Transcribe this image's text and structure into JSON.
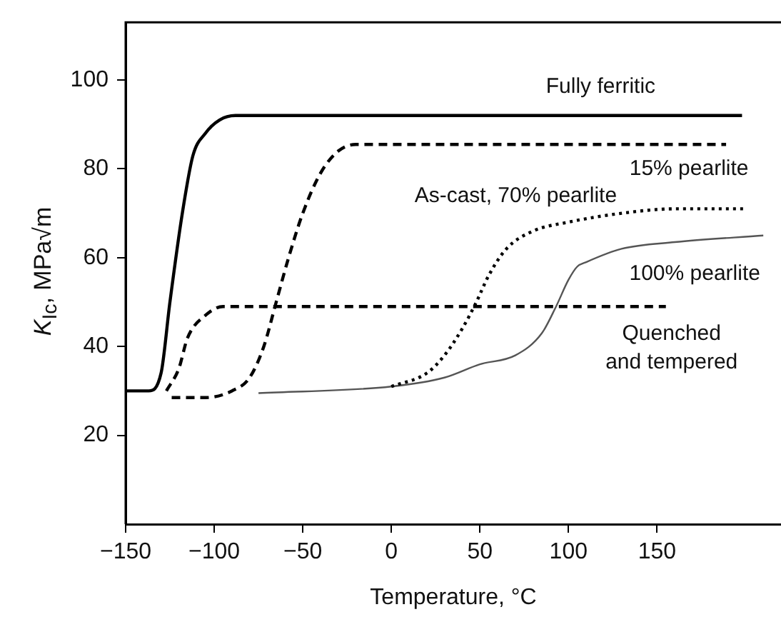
{
  "chart_data": {
    "type": "line",
    "xlabel": "Temperature, °C",
    "ylabel": "K$_{Ic}$, MPa√m",
    "xlim": [
      -150,
      220
    ],
    "ylim": [
      0,
      113
    ],
    "xticks": [
      -150,
      -100,
      -50,
      0,
      50,
      100,
      150
    ],
    "yticks": [
      20,
      40,
      60,
      80,
      100
    ],
    "grid": false,
    "legend": false,
    "marker": "none",
    "series": [
      {
        "name": "Fully ferritic",
        "color": "#000000",
        "line_style": "solid",
        "x": [
          -150,
          -137,
          -130,
          -125,
          -118,
          -112,
          -105,
          -97,
          -88,
          198
        ],
        "values": [
          30,
          30,
          34,
          50,
          70,
          83,
          88,
          91,
          92,
          92
        ]
      },
      {
        "name": "15% pearlite",
        "color": "#000000",
        "line_style": "dashed",
        "x": [
          -124,
          -105,
          -90,
          -80,
          -72,
          -65,
          -58,
          -50,
          -40,
          -30,
          -20,
          189
        ],
        "values": [
          28.5,
          28.5,
          30,
          33,
          40,
          50,
          60,
          70,
          79,
          84,
          85.5,
          85.5
        ]
      },
      {
        "name": "Quenched\nand tempered",
        "color": "#000000",
        "line_style": "dashed",
        "x": [
          -127,
          -120,
          -115,
          -105,
          -95,
          155
        ],
        "values": [
          30,
          35,
          42,
          47,
          49,
          49
        ]
      },
      {
        "name": "As-cast, 70% pearlite",
        "color": "#000000",
        "line_style": "dotted",
        "x": [
          0,
          20,
          30,
          40,
          48,
          55,
          65,
          80,
          100,
          130,
          160,
          200
        ],
        "values": [
          31,
          34,
          38,
          44,
          50,
          56,
          62,
          66,
          68,
          70,
          71,
          71
        ]
      },
      {
        "name": "100% pearlite",
        "color": "#555555",
        "line_style": "solid",
        "x": [
          -75,
          0,
          30,
          50,
          70,
          85,
          93,
          100,
          105,
          110,
          130,
          160,
          210
        ],
        "values": [
          29.5,
          31,
          33,
          36,
          38,
          43,
          49,
          55,
          58,
          59,
          62,
          63.5,
          65
        ]
      }
    ]
  }
}
